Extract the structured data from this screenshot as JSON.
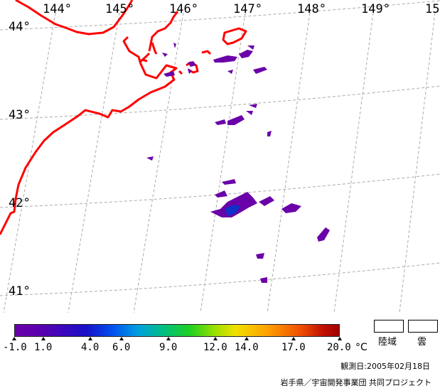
{
  "map": {
    "longitudes": [
      "144°",
      "145°",
      "146°",
      "147°",
      "148°",
      "149°",
      "15"
    ],
    "latitudes": [
      "44°",
      "43°",
      "42°",
      "41°"
    ]
  },
  "legend": {
    "tick_labels": [
      "-1.0",
      "1.0",
      "4.0",
      "6.0",
      "9.0",
      "12.0",
      "14.0",
      "17.0",
      "20.0"
    ],
    "unit": "°C",
    "land_label": "陸域",
    "cloud_label": "雲"
  },
  "footer": {
    "observation_date": "観測日:2005年02月18日",
    "project": "岩手県／宇宙開発事業団 共同プロジェクト"
  },
  "colors": {
    "coastline": "#ff0000",
    "grid": "#999999",
    "sst_low": "#6a00a8",
    "sst_high": "#a00000"
  }
}
